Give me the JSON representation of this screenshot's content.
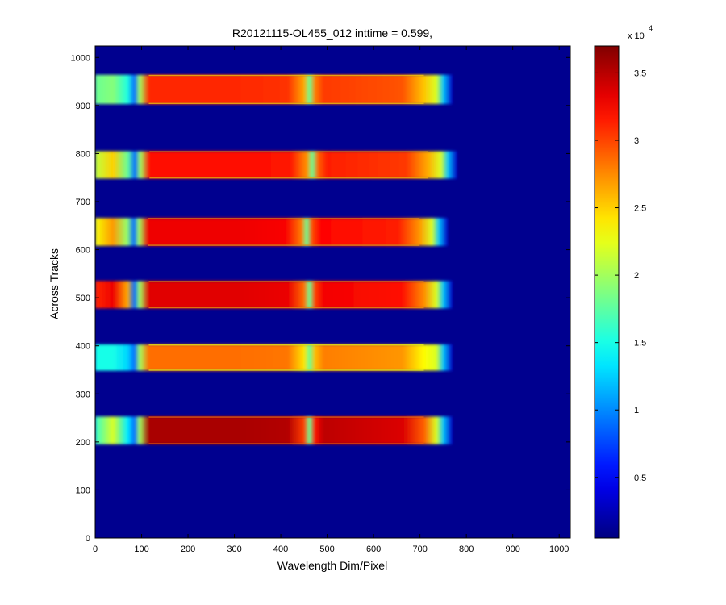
{
  "chart_data": {
    "type": "heatmap",
    "title": "R20121115-OL455_012 inttime = 0.599,",
    "xlabel": "Wavelength Dim/Pixel",
    "ylabel": "Across Tracks",
    "xlim": [
      0,
      1024
    ],
    "ylim": [
      0,
      1024
    ],
    "x_ticks": [
      0,
      100,
      200,
      300,
      400,
      500,
      600,
      700,
      800,
      900,
      1000
    ],
    "y_ticks": [
      0,
      100,
      200,
      300,
      400,
      500,
      600,
      700,
      800,
      900,
      1000
    ],
    "colormap": "jet",
    "background_color": "#00008F",
    "colorbar": {
      "range": [
        500,
        37000
      ],
      "ticks": [
        5000,
        10000,
        15000,
        20000,
        25000,
        30000,
        35000
      ],
      "tick_labels": [
        "0.5",
        "1",
        "1.5",
        "2",
        "2.5",
        "3",
        "3.5"
      ],
      "multiplier_base": "x 10",
      "multiplier_exponent": "4"
    },
    "bands": [
      {
        "y_min": 195,
        "y_max": 253,
        "x_min": 0,
        "x_max": 770,
        "edge_level": 16000,
        "spot_level": 22000,
        "main_level": 35500
      },
      {
        "y_min": 348,
        "y_max": 403,
        "x_min": 0,
        "x_max": 770,
        "edge_level": 15000,
        "spot_level": 15000,
        "main_level": 28500
      },
      {
        "y_min": 478,
        "y_max": 535,
        "x_min": 0,
        "x_max": 770,
        "edge_level": 31000,
        "spot_level": 33000,
        "main_level": 33500
      },
      {
        "y_min": 608,
        "y_max": 666,
        "x_min": 0,
        "x_max": 760,
        "edge_level": 23000,
        "spot_level": 27000,
        "main_level": 33000
      },
      {
        "y_min": 748,
        "y_max": 805,
        "x_min": 0,
        "x_max": 780,
        "edge_level": 21000,
        "spot_level": 25000,
        "main_level": 32000
      },
      {
        "y_min": 903,
        "y_max": 964,
        "x_min": 0,
        "x_max": 770,
        "edge_level": 18000,
        "spot_level": 19000,
        "main_level": 31000
      }
    ]
  }
}
